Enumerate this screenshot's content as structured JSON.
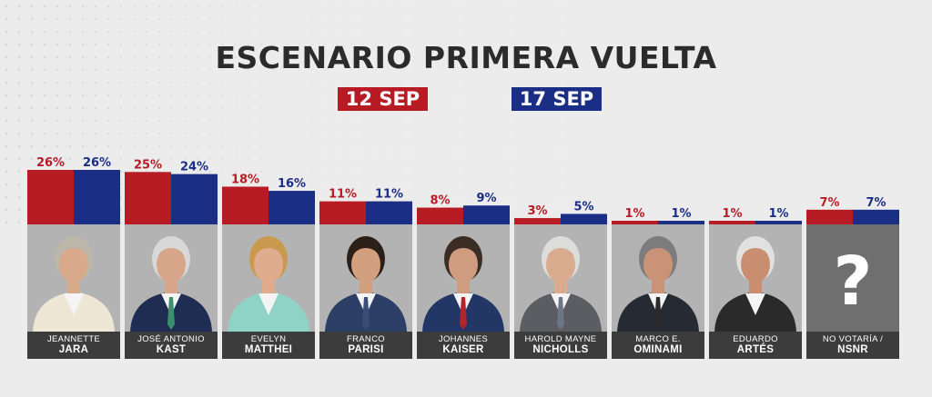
{
  "title": "ESCENARIO PRIMERA VUELTA",
  "legend": [
    {
      "label": "12 SEP",
      "color": "#b71c24"
    },
    {
      "label": "17 SEP",
      "color": "#1b2e85"
    }
  ],
  "colors": {
    "panel_bg": "#b3b3b3",
    "name_bar": "#3c3c3c",
    "unknown_panel": "#6f6f6f",
    "background": "#ececec"
  },
  "chart_data": {
    "type": "bar",
    "title": "ESCENARIO PRIMERA VUELTA",
    "xlabel": "",
    "ylabel": "",
    "ylim": [
      0,
      26
    ],
    "grid": false,
    "legend_position": "top-center",
    "categories": [
      "JEANNETTE JARA",
      "JOSÉ ANTONIO KAST",
      "EVELYN MATTHEI",
      "FRANCO PARISI",
      "JOHANNES KAISER",
      "HAROLD MAYNE NICHOLLS",
      "MARCO E. OMINAMI",
      "EDUARDO ARTÉS",
      "NO VOTARÍA / NSNR"
    ],
    "series": [
      {
        "name": "12 SEP",
        "color": "#b71c24",
        "values": [
          26,
          25,
          18,
          11,
          8,
          3,
          1,
          1,
          7
        ],
        "labels": [
          "26%",
          "25%",
          "18%",
          "11%",
          "8%",
          "3%",
          "1%",
          "1%",
          "7%"
        ]
      },
      {
        "name": "17 SEP",
        "color": "#1b2e85",
        "values": [
          26,
          24,
          16,
          11,
          9,
          5,
          1,
          1,
          7
        ],
        "labels": [
          "26%",
          "24%",
          "16%",
          "11%",
          "9%",
          "5%",
          "1%",
          "1%",
          "7%"
        ]
      }
    ]
  },
  "candidates": [
    {
      "first": "Jeannette",
      "last": "JARA",
      "photo": "candidate-photo",
      "hair": "#bdb7aa",
      "suit": "#efe7d6",
      "tie": "",
      "skin": "#d9a98b"
    },
    {
      "first": "José Antonio",
      "last": "KAST",
      "photo": "candidate-photo",
      "hair": "#d8d8d8",
      "suit": "#1f2d52",
      "tie": "#3a8f6e",
      "skin": "#d6a58a"
    },
    {
      "first": "Evelyn",
      "last": "MATTHEI",
      "photo": "candidate-photo",
      "hair": "#c99a4e",
      "suit": "#8fd3c7",
      "tie": "",
      "skin": "#e0ac8e"
    },
    {
      "first": "Franco",
      "last": "PARISI",
      "photo": "candidate-photo",
      "hair": "#2b1f18",
      "suit": "#2c3f66",
      "tie": "#3a4d77",
      "skin": "#d2a07e"
    },
    {
      "first": "Johannes",
      "last": "KAISER",
      "photo": "candidate-photo",
      "hair": "#3b2d24",
      "suit": "#223766",
      "tie": "#b2232a",
      "skin": "#cf9c80"
    },
    {
      "first": "Harold Mayne",
      "last": "NICHOLLS",
      "photo": "candidate-photo",
      "hair": "#dcdcd8",
      "suit": "#5b5d63",
      "tie": "#6d7585",
      "skin": "#d9ab8f"
    },
    {
      "first": "Marco E.",
      "last": "OMINAMI",
      "photo": "candidate-photo",
      "hair": "#7c7c7c",
      "suit": "#262a33",
      "tie": "#2a2a2a",
      "skin": "#c99378"
    },
    {
      "first": "Eduardo",
      "last": "ARTÉS",
      "photo": "candidate-photo",
      "hair": "#e1e1e1",
      "suit": "#2a2a2a",
      "tie": "",
      "skin": "#c98e70"
    },
    {
      "first": "No votaría /",
      "last": "NSNR",
      "photo": "question-mark",
      "qmark": "?"
    }
  ]
}
